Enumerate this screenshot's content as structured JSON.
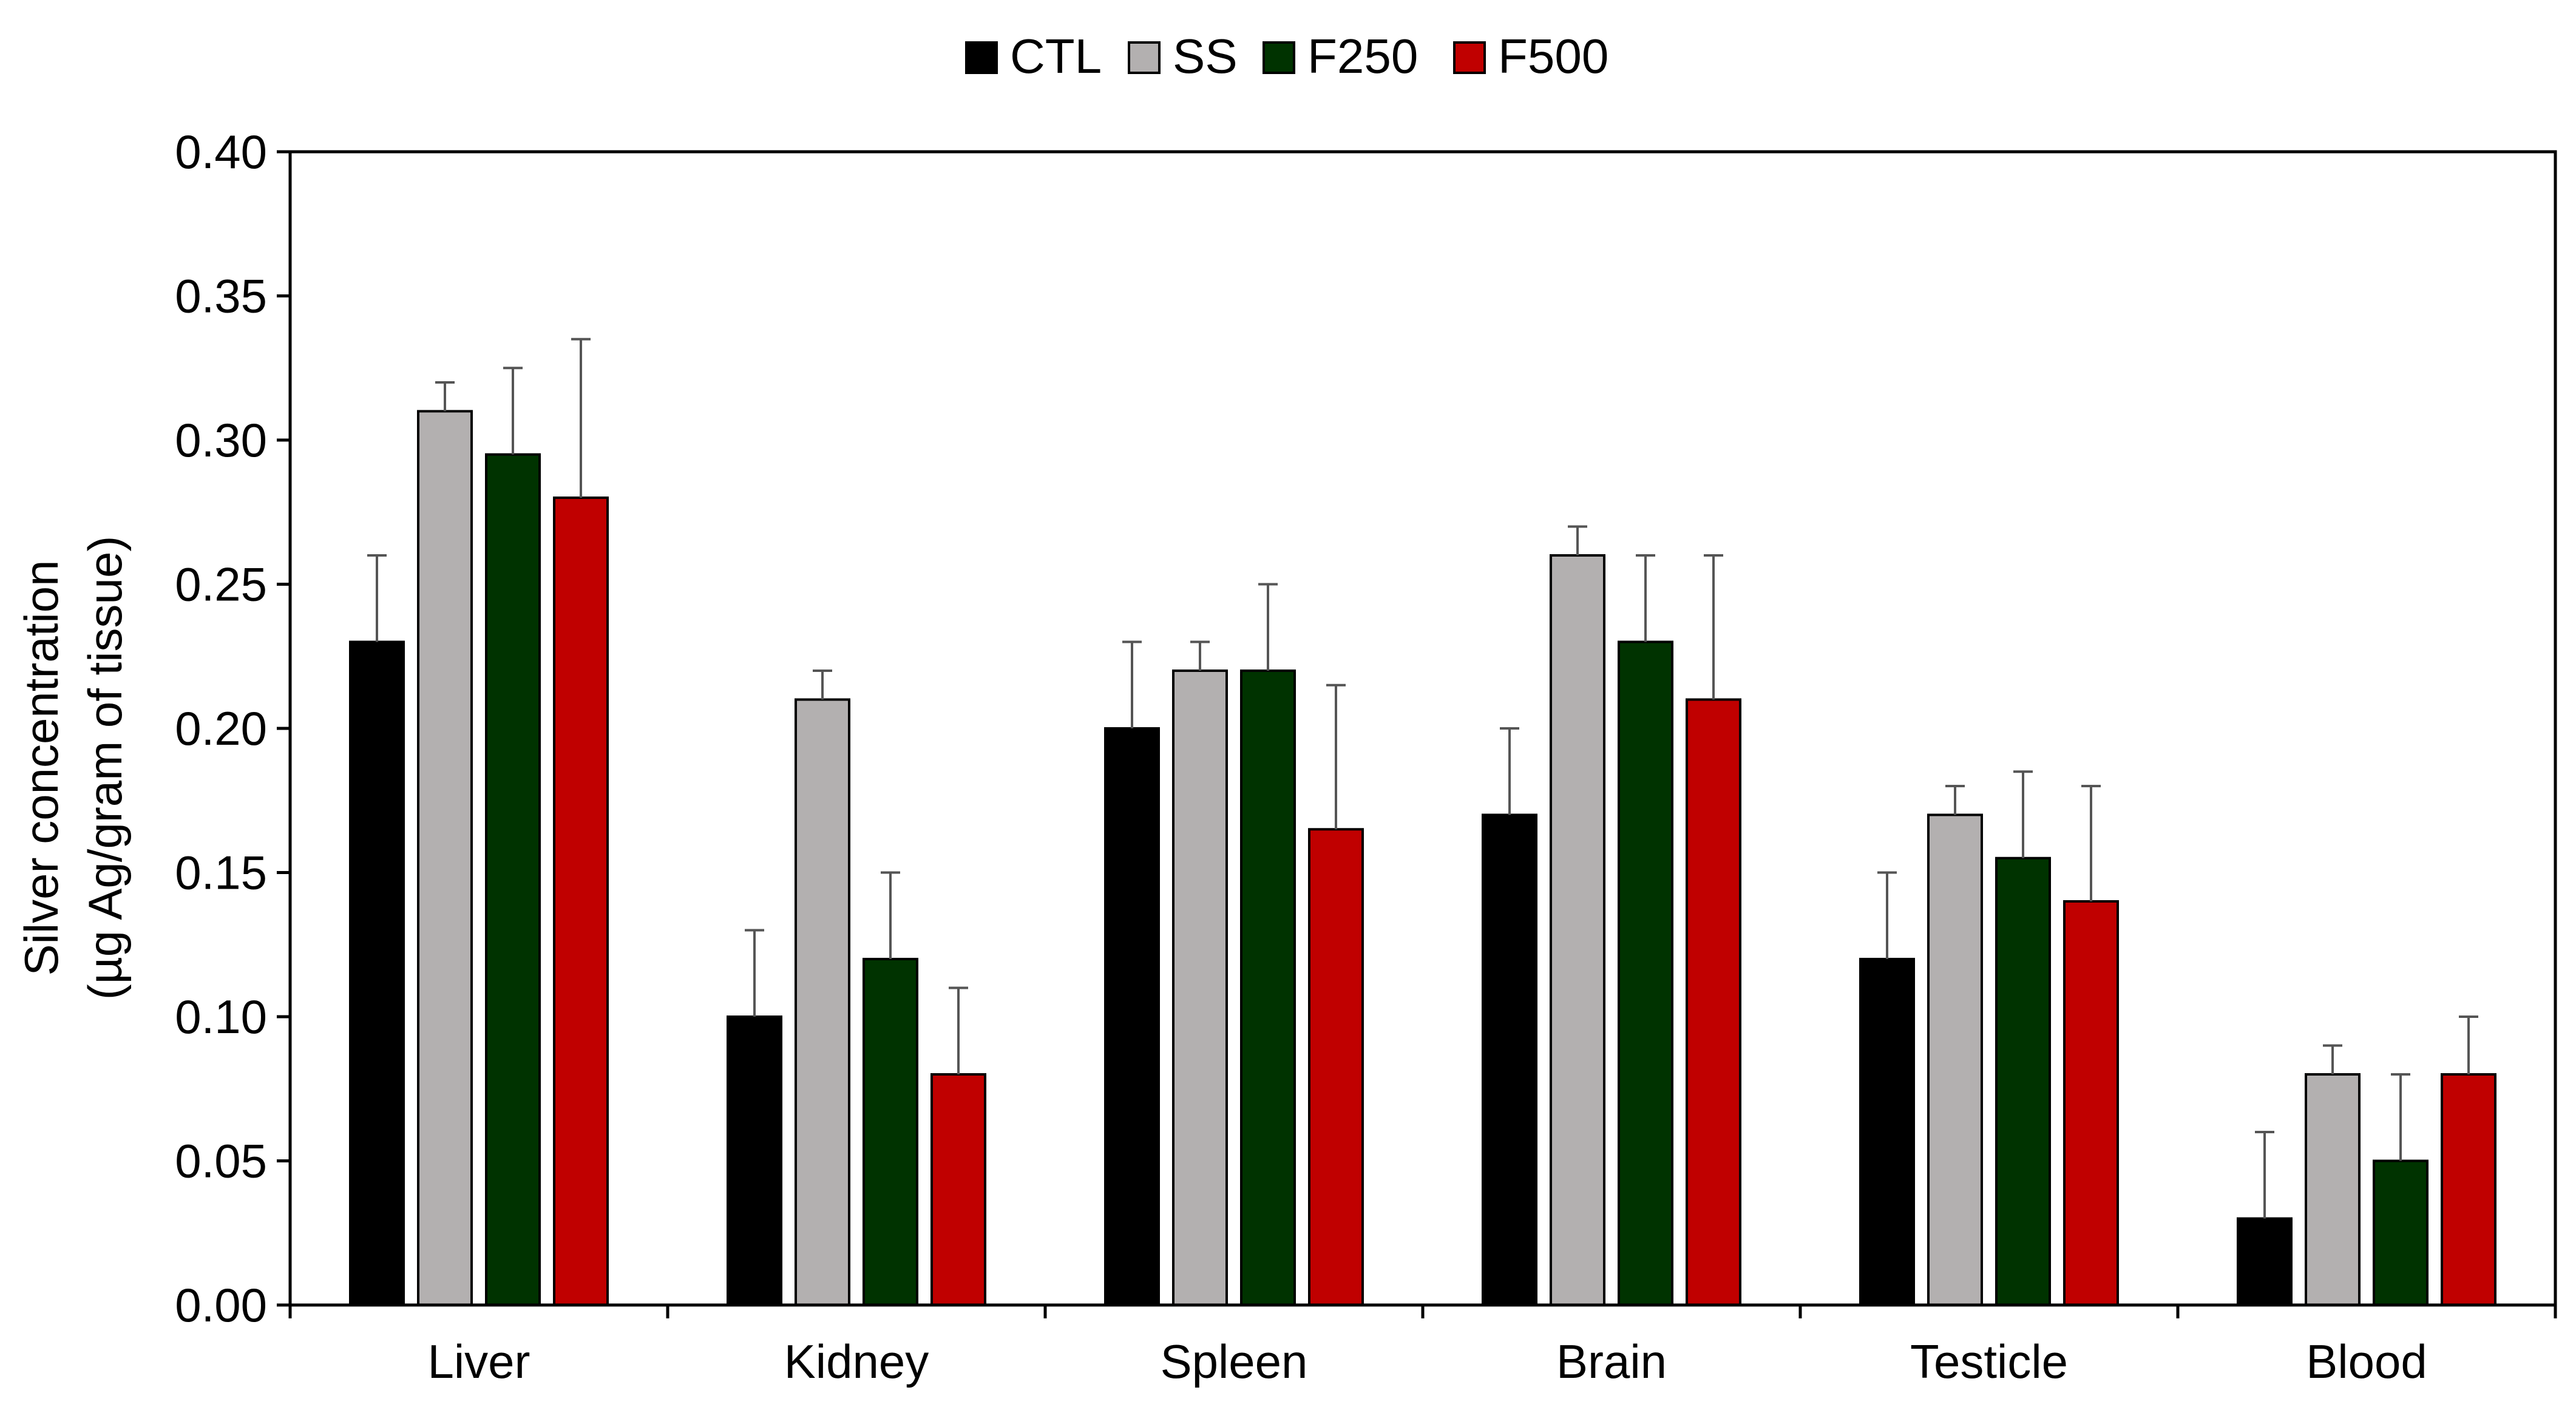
{
  "chart_data": {
    "type": "bar",
    "title": "",
    "xlabel": "",
    "ylabel_line1": "Silver concentration",
    "ylabel_line2": "(µg Ag/gram of tissue)",
    "ylim": [
      0,
      0.4
    ],
    "yticks": [
      0.0,
      0.05,
      0.1,
      0.15,
      0.2,
      0.25,
      0.3,
      0.35,
      0.4
    ],
    "ytick_labels": [
      "0.00",
      "0.05",
      "0.10",
      "0.15",
      "0.20",
      "0.25",
      "0.30",
      "0.35",
      "0.40"
    ],
    "legend_position": "top-center",
    "grid": false,
    "categories": [
      "Liver",
      "Kidney",
      "Spleen",
      "Brain",
      "Testicle",
      "Blood"
    ],
    "series": [
      {
        "name": "CTL",
        "color": "#000000",
        "values": [
          0.23,
          0.1,
          0.2,
          0.17,
          0.12,
          0.03
        ],
        "errors": [
          0.03,
          0.03,
          0.03,
          0.03,
          0.03,
          0.03
        ]
      },
      {
        "name": "SS",
        "color": "#b3b0b0",
        "values": [
          0.31,
          0.21,
          0.22,
          0.26,
          0.17,
          0.08
        ],
        "errors": [
          0.01,
          0.01,
          0.01,
          0.01,
          0.01,
          0.01
        ]
      },
      {
        "name": "F250",
        "color": "#003300",
        "values": [
          0.295,
          0.12,
          0.22,
          0.23,
          0.155,
          0.05
        ],
        "errors": [
          0.03,
          0.03,
          0.03,
          0.03,
          0.03,
          0.03
        ]
      },
      {
        "name": "F500",
        "color": "#c00000",
        "values": [
          0.28,
          0.08,
          0.165,
          0.21,
          0.14,
          0.08
        ],
        "errors": [
          0.055,
          0.03,
          0.05,
          0.05,
          0.04,
          0.02
        ]
      }
    ]
  }
}
